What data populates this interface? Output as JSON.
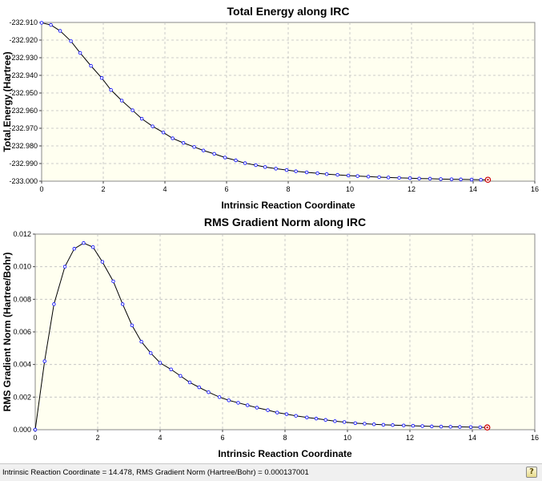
{
  "chart_data": [
    {
      "type": "line",
      "title": "Total Energy along IRC",
      "xlabel": "Intrinsic Reaction Coordinate",
      "ylabel": "Total Energy (Hartree)",
      "xlim": [
        0,
        16
      ],
      "ylim": [
        -233.0,
        -232.91
      ],
      "xticks": [
        0,
        2,
        4,
        6,
        8,
        10,
        12,
        14,
        16
      ],
      "yticks": [
        -232.91,
        -232.92,
        -232.93,
        -232.94,
        -232.95,
        -232.96,
        -232.97,
        -232.98,
        -232.99,
        -233.0
      ],
      "tick_decimals": 3,
      "grid": true,
      "x": [
        0.0,
        0.3,
        0.6,
        0.95,
        1.25,
        1.6,
        1.95,
        2.25,
        2.6,
        2.95,
        3.25,
        3.6,
        3.95,
        4.25,
        4.6,
        4.95,
        5.25,
        5.6,
        5.95,
        6.3,
        6.6,
        6.95,
        7.25,
        7.6,
        7.95,
        8.25,
        8.6,
        8.95,
        9.25,
        9.6,
        9.95,
        10.25,
        10.6,
        10.95,
        11.25,
        11.6,
        11.95,
        12.25,
        12.6,
        12.95,
        13.3,
        13.6,
        13.95,
        14.25,
        14.478
      ],
      "values": [
        -232.9102,
        -232.9114,
        -232.9148,
        -232.9206,
        -232.9273,
        -232.9346,
        -232.9415,
        -232.9483,
        -232.9543,
        -232.9598,
        -232.9646,
        -232.9689,
        -232.9724,
        -232.9757,
        -232.9783,
        -232.9806,
        -232.9826,
        -232.9845,
        -232.9866,
        -232.9882,
        -232.9898,
        -232.9909,
        -232.992,
        -232.9929,
        -232.9937,
        -232.9944,
        -232.995,
        -232.9955,
        -232.996,
        -232.9964,
        -232.9968,
        -232.9971,
        -232.9974,
        -232.9977,
        -232.9979,
        -232.9981,
        -232.9983,
        -232.9985,
        -232.9986,
        -232.9988,
        -232.9989,
        -232.999,
        -232.9991,
        -232.9992,
        -232.9992
      ]
    },
    {
      "type": "line",
      "title": "RMS Gradient Norm along IRC",
      "xlabel": "Intrinsic Reaction Coordinate",
      "ylabel": "RMS Gradient Norm (Hartree/Bohr)",
      "xlim": [
        0,
        16
      ],
      "ylim": [
        0,
        0.012
      ],
      "xticks": [
        0,
        2,
        4,
        6,
        8,
        10,
        12,
        14,
        16
      ],
      "yticks": [
        0.0,
        0.002,
        0.004,
        0.006,
        0.008,
        0.01,
        0.012
      ],
      "tick_decimals": 3,
      "grid": true,
      "x": [
        0.0,
        0.3,
        0.6,
        0.95,
        1.25,
        1.55,
        1.85,
        2.15,
        2.5,
        2.8,
        3.1,
        3.4,
        3.7,
        4.0,
        4.35,
        4.65,
        4.95,
        5.25,
        5.55,
        5.9,
        6.2,
        6.5,
        6.8,
        7.1,
        7.45,
        7.75,
        8.05,
        8.35,
        8.7,
        9.0,
        9.3,
        9.6,
        9.9,
        10.25,
        10.55,
        10.85,
        11.15,
        11.45,
        11.8,
        12.1,
        12.4,
        12.7,
        13.0,
        13.3,
        13.6,
        13.95,
        14.25,
        14.478
      ],
      "values": [
        0.0,
        0.0042,
        0.0077,
        0.01,
        0.0111,
        0.01145,
        0.0112,
        0.0103,
        0.0091,
        0.0077,
        0.0064,
        0.0054,
        0.0047,
        0.0041,
        0.0037,
        0.0033,
        0.0029,
        0.0026,
        0.0023,
        0.002,
        0.0018,
        0.00165,
        0.0015,
        0.00135,
        0.0012,
        0.00105,
        0.00095,
        0.00085,
        0.00075,
        0.00068,
        0.0006,
        0.00052,
        0.00047,
        0.0004,
        0.00037,
        0.00033,
        0.0003,
        0.00028,
        0.00026,
        0.00024,
        0.00022,
        0.0002,
        0.00019,
        0.00018,
        0.00017,
        0.00016,
        0.00015,
        0.000137001
      ]
    }
  ],
  "colors": {
    "plot_background": "#fffff0",
    "grid": "#bdbdbd",
    "line": "#000000",
    "marker": "#1a1aff",
    "highlight_marker": "#cc0000"
  },
  "status_bar": {
    "text": "Intrinsic Reaction Coordinate = 14.478, RMS Gradient Norm (Hartree/Bohr) = 0.000137001",
    "help_icon": "help-question-icon"
  }
}
